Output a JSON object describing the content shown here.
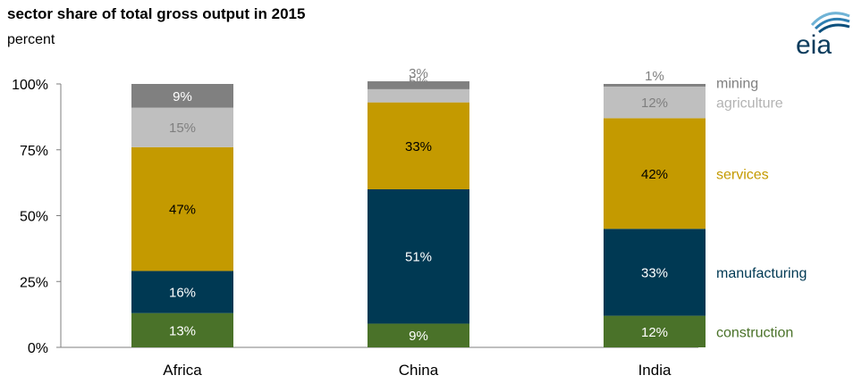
{
  "title": "sector share of total gross output in 2015",
  "subtitle": "percent",
  "logo": {
    "text": "eia"
  },
  "chart_data": {
    "type": "bar",
    "stacked": true,
    "categories": [
      "Africa",
      "China",
      "India"
    ],
    "ylim": [
      0,
      100
    ],
    "yticks": [
      "0%",
      "25%",
      "50%",
      "75%",
      "100%"
    ],
    "grid": false,
    "legend": "right",
    "series": [
      {
        "name": "construction",
        "values": [
          13,
          9,
          12
        ],
        "labels": [
          "13%",
          "9%",
          "12%"
        ],
        "color": "#4a7229",
        "label_color": "#ffffff",
        "legend_color": "#4a7229"
      },
      {
        "name": "manufacturing",
        "values": [
          16,
          51,
          33
        ],
        "labels": [
          "16%",
          "51%",
          "33%"
        ],
        "color": "#003953",
        "label_color": "#ffffff",
        "legend_color": "#003953"
      },
      {
        "name": "services",
        "values": [
          47,
          33,
          42
        ],
        "labels": [
          "47%",
          "33%",
          "42%"
        ],
        "color": "#c49a00",
        "label_color": "#000000",
        "legend_color": "#c49a00"
      },
      {
        "name": "agriculture",
        "values": [
          15,
          5,
          12
        ],
        "labels": [
          "15%",
          "5%",
          "12%"
        ],
        "color": "#bfbfbf",
        "label_color": "#7f7f7f",
        "legend_color": "#b3b3b3"
      },
      {
        "name": "mining",
        "values": [
          9,
          3,
          1
        ],
        "labels": [
          "9%",
          "3%",
          "1%"
        ],
        "color": "#808080",
        "label_color": "#ffffff",
        "legend_color": "#808080"
      }
    ]
  }
}
